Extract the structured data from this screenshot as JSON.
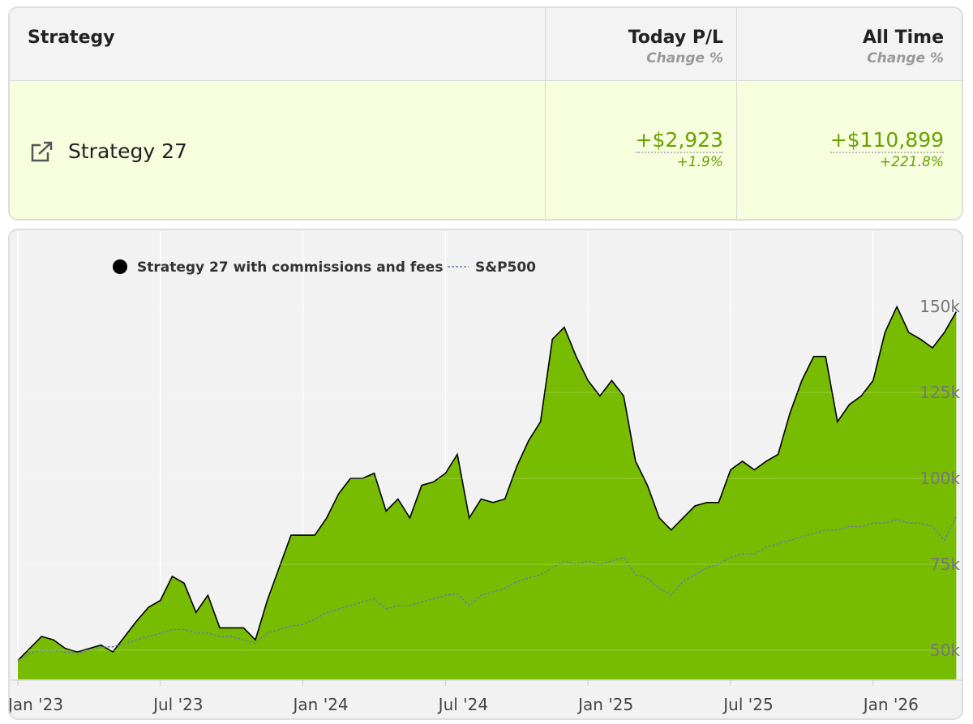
{
  "table": {
    "header": {
      "strategy": "Strategy",
      "today": "Today P/L",
      "today_sub": "Change %",
      "all_time": "All Time",
      "all_time_sub": "Change %"
    },
    "row": {
      "name": "Strategy 27",
      "today": "+$2,923",
      "today_pct": "+1.9%",
      "all_time": "+$110,899",
      "all_time_pct": "+221.8%"
    }
  },
  "chart_data": {
    "type": "area",
    "categories": [
      "Jan '23",
      null,
      null,
      null,
      null,
      null,
      null,
      null,
      null,
      null,
      null,
      null,
      "Jul '23",
      null,
      null,
      null,
      null,
      null,
      null,
      null,
      null,
      null,
      null,
      null,
      "Jan '24",
      null,
      null,
      null,
      null,
      null,
      null,
      null,
      null,
      null,
      null,
      null,
      "Jul '24",
      null,
      null,
      null,
      null,
      null,
      null,
      null,
      null,
      null,
      null,
      null,
      "Jan '25",
      null,
      null,
      null,
      null,
      null,
      null,
      null,
      null,
      null,
      null,
      null,
      "Jul '25",
      null,
      null,
      null,
      null,
      null,
      null,
      null,
      null,
      null,
      null,
      null,
      "Jan '26",
      null,
      null,
      null,
      null,
      null,
      null,
      null
    ],
    "series": [
      {
        "name": "Strategy 27 with commissions and fees",
        "color": "#77bc00",
        "line_color": "#000000",
        "values": [
          47000,
          50500,
          54000,
          53000,
          50500,
          49500,
          50500,
          51500,
          49500,
          54000,
          58500,
          62500,
          64500,
          71500,
          69500,
          61000,
          66000,
          56500,
          56500,
          56500,
          53000,
          64500,
          74000,
          83500,
          83500,
          83500,
          88500,
          95500,
          100000,
          100000,
          101500,
          90500,
          94000,
          88500,
          98000,
          99000,
          101500,
          107000,
          88500,
          94000,
          93000,
          94000,
          103500,
          111000,
          116500,
          140500,
          144000,
          135500,
          128500,
          124000,
          128500,
          124000,
          105000,
          98000,
          88500,
          85000,
          88500,
          92000,
          93000,
          93000,
          102500,
          105000,
          102500,
          105000,
          107000,
          119000,
          128500,
          135500,
          135500,
          116500,
          121500,
          124000,
          128500,
          142500,
          150000,
          142500,
          140500,
          138000,
          142500,
          148500
        ]
      },
      {
        "name": "S&P500",
        "color": "#6b7aa8",
        "values": [
          47000,
          49000,
          50000,
          50000,
          49500,
          49000,
          50000,
          51000,
          51000,
          52000,
          53000,
          54000,
          55000,
          56000,
          56000,
          55000,
          55000,
          54000,
          54000,
          53000,
          52000,
          55000,
          56000,
          57000,
          57500,
          59000,
          61000,
          62000,
          63000,
          64000,
          65000,
          62000,
          63000,
          63000,
          64000,
          65000,
          66000,
          66500,
          63000,
          66000,
          67000,
          68000,
          70000,
          71000,
          72000,
          74000,
          76000,
          75000,
          76000,
          75000,
          76000,
          77000,
          72000,
          71000,
          68000,
          66000,
          70000,
          72000,
          74000,
          75000,
          77000,
          78000,
          78000,
          80000,
          81000,
          82000,
          83000,
          84000,
          85000,
          85000,
          86000,
          86000,
          87000,
          87000,
          88000,
          87000,
          87000,
          86000,
          82000,
          89000
        ]
      }
    ],
    "ylim": [
      41500,
      172000
    ],
    "yticks": [
      {
        "value": 50000,
        "label": "50k"
      },
      {
        "value": 75000,
        "label": "75k"
      },
      {
        "value": 100000,
        "label": "100k"
      },
      {
        "value": 125000,
        "label": "125k"
      },
      {
        "value": 150000,
        "label": "150k"
      }
    ],
    "grid": true,
    "legend": "top"
  }
}
